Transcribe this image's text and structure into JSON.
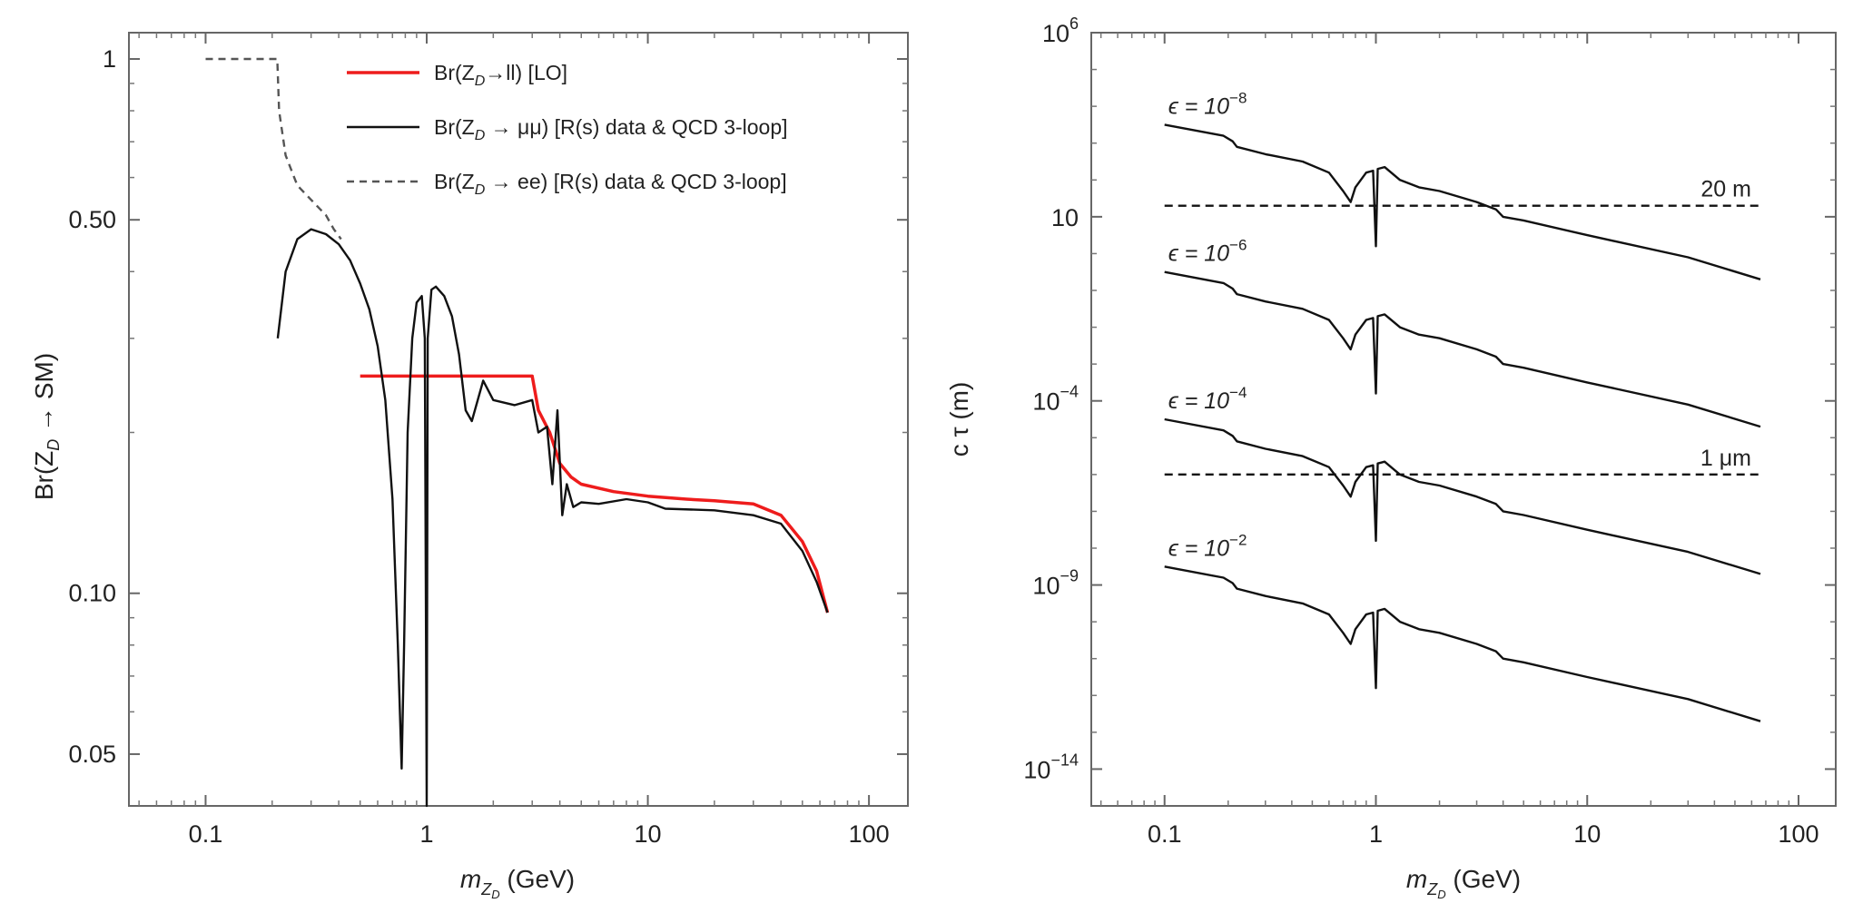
{
  "chart_data": [
    {
      "type": "line",
      "scale": {
        "x": "log",
        "y": "log"
      },
      "xlim": [
        0.045,
        150
      ],
      "ylim": [
        0.04,
        1.12
      ],
      "xlabel": {
        "base": "m",
        "sub": "Z",
        "subsub": "D",
        "unit": "(GeV)"
      },
      "ylabel": "Br(Z_D → SM)",
      "x_ticks": [
        {
          "value": 0.1,
          "label": "0.1"
        },
        {
          "value": 1,
          "label": "1"
        },
        {
          "value": 10,
          "label": "10"
        },
        {
          "value": 100,
          "label": "100"
        }
      ],
      "y_ticks": [
        {
          "value": 1,
          "label": "1"
        },
        {
          "value": 0.5,
          "label": "0.50"
        },
        {
          "value": 0.1,
          "label": "0.10"
        },
        {
          "value": 0.05,
          "label": "0.05"
        }
      ],
      "grid": false,
      "legend_position": "top-right",
      "series": [
        {
          "name": "Br(Z_D→ll) [LO]",
          "legend_parts": [
            "Br(Z",
            "D",
            "→ll) [LO]"
          ],
          "color": "#ee1c1c",
          "style": "solid",
          "points": [
            [
              0.5,
              0.255
            ],
            [
              1,
              0.255
            ],
            [
              2,
              0.255
            ],
            [
              3.0,
              0.255
            ],
            [
              3.2,
              0.22
            ],
            [
              3.6,
              0.2
            ],
            [
              4.0,
              0.175
            ],
            [
              4.5,
              0.165
            ],
            [
              5,
              0.16
            ],
            [
              7,
              0.155
            ],
            [
              10,
              0.152
            ],
            [
              15,
              0.15
            ],
            [
              20,
              0.149
            ],
            [
              30,
              0.147
            ],
            [
              40,
              0.14
            ],
            [
              50,
              0.125
            ],
            [
              58,
              0.11
            ],
            [
              65,
              0.092
            ]
          ]
        },
        {
          "name": "Br(Z_D → μμ) [R(s) data & QCD 3-loop]",
          "legend_parts": [
            "Br(Z",
            "D",
            " → μμ) [R(s) data & QCD 3-loop]"
          ],
          "color": "#111111",
          "style": "solid",
          "points": [
            [
              0.212,
              0.3
            ],
            [
              0.23,
              0.4
            ],
            [
              0.26,
              0.46
            ],
            [
              0.3,
              0.48
            ],
            [
              0.35,
              0.47
            ],
            [
              0.4,
              0.45
            ],
            [
              0.45,
              0.42
            ],
            [
              0.5,
              0.38
            ],
            [
              0.55,
              0.34
            ],
            [
              0.6,
              0.29
            ],
            [
              0.65,
              0.23
            ],
            [
              0.7,
              0.15
            ],
            [
              0.74,
              0.08
            ],
            [
              0.77,
              0.047
            ],
            [
              0.79,
              0.08
            ],
            [
              0.82,
              0.2
            ],
            [
              0.86,
              0.3
            ],
            [
              0.9,
              0.35
            ],
            [
              0.95,
              0.36
            ],
            [
              0.98,
              0.3
            ],
            [
              1.0,
              0.04
            ],
            [
              1.01,
              0.3
            ],
            [
              1.05,
              0.37
            ],
            [
              1.1,
              0.375
            ],
            [
              1.2,
              0.36
            ],
            [
              1.3,
              0.33
            ],
            [
              1.4,
              0.28
            ],
            [
              1.5,
              0.22
            ],
            [
              1.6,
              0.21
            ],
            [
              1.8,
              0.25
            ],
            [
              2.0,
              0.23
            ],
            [
              2.5,
              0.225
            ],
            [
              3.0,
              0.23
            ],
            [
              3.2,
              0.2
            ],
            [
              3.5,
              0.205
            ],
            [
              3.7,
              0.16
            ],
            [
              3.9,
              0.22
            ],
            [
              4.1,
              0.14
            ],
            [
              4.3,
              0.16
            ],
            [
              4.6,
              0.145
            ],
            [
              5,
              0.148
            ],
            [
              6,
              0.147
            ],
            [
              8,
              0.15
            ],
            [
              10,
              0.148
            ],
            [
              12,
              0.144
            ],
            [
              20,
              0.143
            ],
            [
              30,
              0.14
            ],
            [
              40,
              0.135
            ],
            [
              50,
              0.12
            ],
            [
              58,
              0.105
            ],
            [
              65,
              0.092
            ]
          ]
        },
        {
          "name": "Br(Z_D → ee) [R(s) data & QCD 3-loop]",
          "legend_parts": [
            "Br(Z",
            "D",
            " → ee) [R(s) data & QCD 3-loop]"
          ],
          "color": "#555555",
          "style": "dashed",
          "points": [
            [
              0.1,
              1.0
            ],
            [
              0.211,
              1.0
            ],
            [
              0.215,
              0.8
            ],
            [
              0.23,
              0.66
            ],
            [
              0.26,
              0.58
            ],
            [
              0.3,
              0.545
            ],
            [
              0.35,
              0.51
            ],
            [
              0.38,
              0.48
            ],
            [
              0.41,
              0.46
            ]
          ]
        }
      ]
    },
    {
      "type": "line",
      "scale": {
        "x": "log",
        "y": "log"
      },
      "xlim": [
        0.045,
        150
      ],
      "ylim": [
        1e-15,
        1000000.0
      ],
      "xlabel": {
        "base": "m",
        "sub": "Z",
        "subsub": "D",
        "unit": "(GeV)"
      },
      "ylabel": "c τ (m)",
      "x_ticks": [
        {
          "value": 0.1,
          "label": "0.1"
        },
        {
          "value": 1,
          "label": "1"
        },
        {
          "value": 10,
          "label": "10"
        },
        {
          "value": 100,
          "label": "100"
        }
      ],
      "y_ticks": [
        {
          "exponent": 6,
          "label": "10",
          "sup": "6"
        },
        {
          "exponent": 1,
          "label": "10",
          "sup": ""
        },
        {
          "exponent": -4,
          "label": "10",
          "sup": "−4"
        },
        {
          "exponent": -9,
          "label": "10",
          "sup": "−9"
        },
        {
          "exponent": -14,
          "label": "10",
          "sup": "−14"
        }
      ],
      "grid": false,
      "curve_shape_log10_offsets": [
        [
          0.1,
          0
        ],
        [
          0.19,
          -0.3
        ],
        [
          0.21,
          -0.45
        ],
        [
          0.22,
          -0.6
        ],
        [
          0.3,
          -0.8
        ],
        [
          0.45,
          -1.0
        ],
        [
          0.6,
          -1.3
        ],
        [
          0.7,
          -1.8
        ],
        [
          0.76,
          -2.1
        ],
        [
          0.8,
          -1.7
        ],
        [
          0.9,
          -1.3
        ],
        [
          0.97,
          -1.25
        ],
        [
          1.0,
          -3.3
        ],
        [
          1.02,
          -1.2
        ],
        [
          1.1,
          -1.15
        ],
        [
          1.3,
          -1.5
        ],
        [
          1.6,
          -1.7
        ],
        [
          2,
          -1.8
        ],
        [
          3,
          -2.1
        ],
        [
          3.7,
          -2.3
        ],
        [
          4,
          -2.5
        ],
        [
          5,
          -2.6
        ],
        [
          10,
          -3.0
        ],
        [
          30,
          -3.6
        ],
        [
          66,
          -4.2
        ]
      ],
      "series": [
        {
          "epsilon_label": "ϵ = 10",
          "epsilon_exp": "−8",
          "base_log10": 3.5,
          "color": "#111111"
        },
        {
          "epsilon_label": "ϵ = 10",
          "epsilon_exp": "−6",
          "base_log10": -0.5,
          "color": "#111111"
        },
        {
          "epsilon_label": "ϵ = 10",
          "epsilon_exp": "−4",
          "base_log10": -4.5,
          "color": "#111111"
        },
        {
          "epsilon_label": "ϵ = 10",
          "epsilon_exp": "−2",
          "base_log10": -8.5,
          "color": "#111111"
        }
      ],
      "reference_lines": [
        {
          "label": "20 m",
          "value": 20,
          "style": "dashed"
        },
        {
          "label": "1 μm",
          "value": 1e-06,
          "style": "dashed"
        }
      ]
    }
  ]
}
